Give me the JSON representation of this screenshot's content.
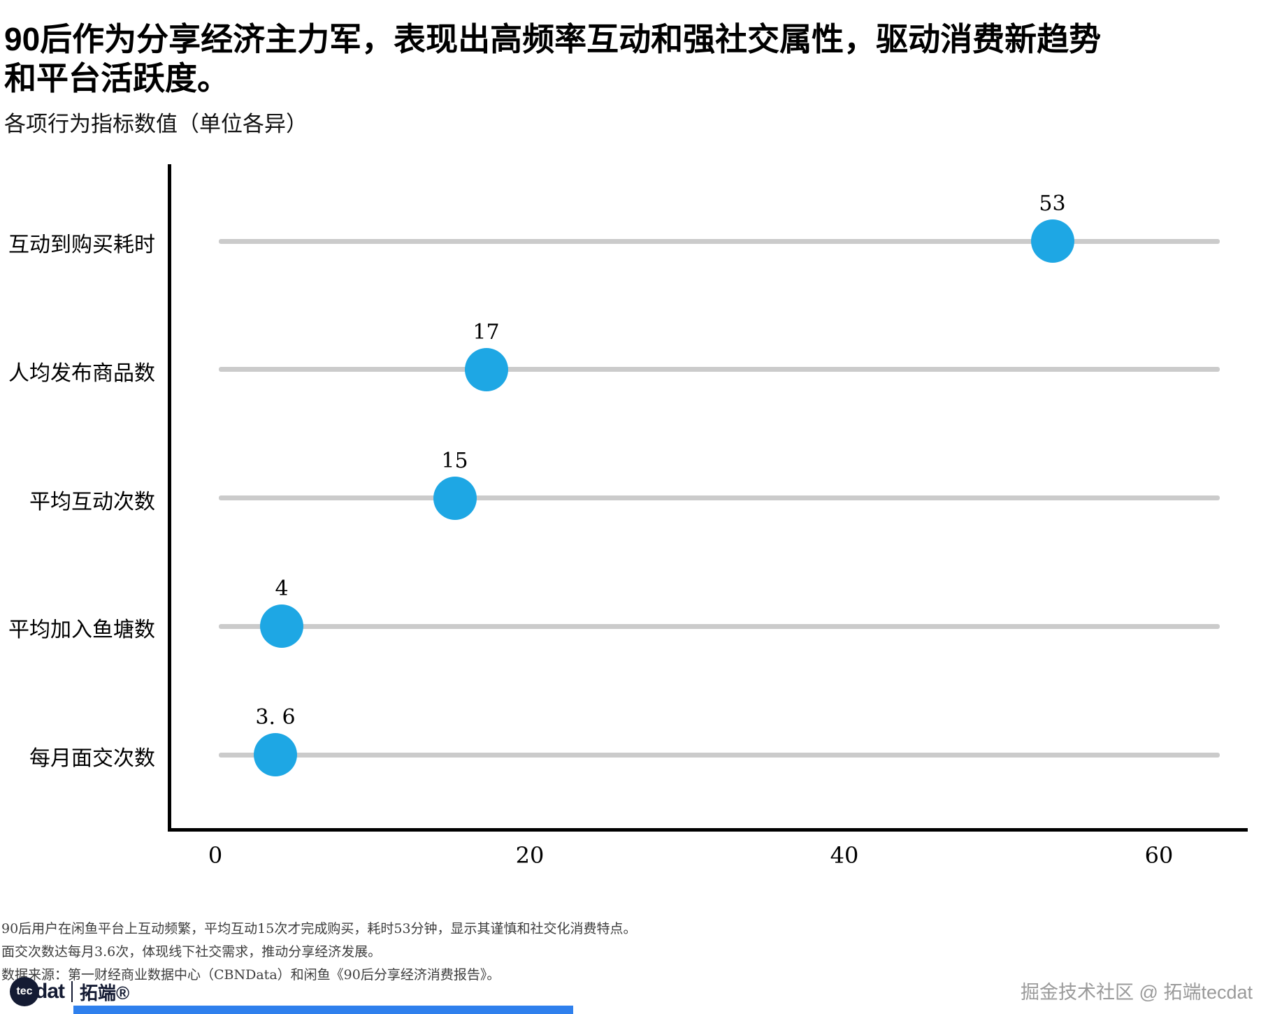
{
  "title": "90后作为分享经济主力军，表现出高频率互动和强社交属性，驱动消费新趋势和平台活跃度。",
  "subtitle": "各项行为指标数值（单位各异）",
  "chart_data": {
    "type": "scatter",
    "subtype": "horizontal-lollipop",
    "categories": [
      "互动到购买耗时",
      "人均发布商品数",
      "平均互动次数",
      "平均加入鱼塘数",
      "每月面交次数"
    ],
    "values": [
      53,
      17,
      15,
      4,
      3.6
    ],
    "value_labels": [
      "53",
      "17",
      "15",
      "4",
      "3. 6"
    ],
    "x_ticks": [
      0,
      20,
      40,
      60
    ],
    "xlim": [
      0,
      65
    ],
    "xlabel": "",
    "ylabel": "",
    "grid": false,
    "legend": "none",
    "dot_color": "#1ea7e4",
    "stem_color": "#cbcbcb",
    "axis_color": "#000000"
  },
  "footnotes": [
    "90后用户在闲鱼平台上互动频繁，平均互动15次才完成购买，耗时53分钟，显示其谨慎和社交化消费特点。",
    "面交次数达每月3.6次，体现线下社交需求，推动分享经济发展。",
    "数据来源：第一财经商业数据中心（CBNData）和闲鱼《90后分享经济消费报告》。"
  ],
  "branding": {
    "logo_circle_text": "tec",
    "logo_text_rest": "dat",
    "logo_suffix": "拓端®",
    "watermark": "掘金技术社区 @ 拓端tecdat"
  }
}
